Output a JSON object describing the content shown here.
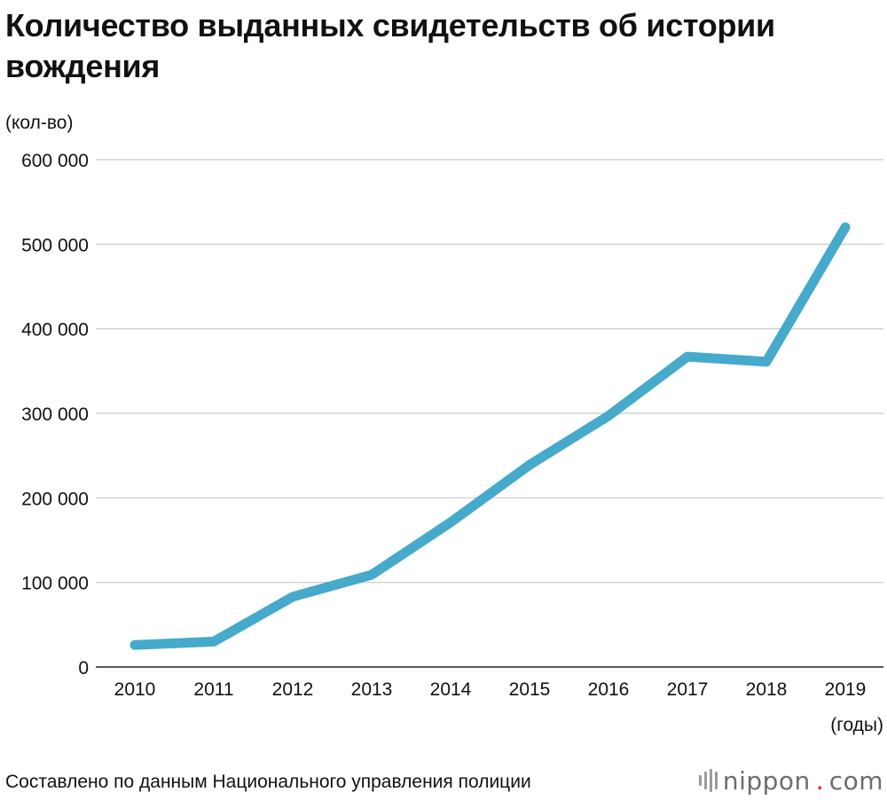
{
  "header": {
    "title": "Количество выданных свидетельств об истории вождения"
  },
  "chart_data": {
    "type": "line",
    "title": "Количество выданных свидетельств об истории вождения",
    "ylabel": "(кол-во)",
    "xlabel": "(годы)",
    "categories": [
      "2010",
      "2011",
      "2012",
      "2013",
      "2014",
      "2015",
      "2016",
      "2017",
      "2018",
      "2019"
    ],
    "series": [
      {
        "values": [
          26000,
          30000,
          83000,
          109000,
          171000,
          239000,
          297000,
          367000,
          361000,
          520000
        ]
      }
    ],
    "ylim": [
      0,
      600000
    ],
    "yticks": [
      0,
      100000,
      200000,
      300000,
      400000,
      500000,
      600000
    ],
    "ytick_labels": [
      "0",
      "100 000",
      "200 000",
      "300 000",
      "400 000",
      "500 000",
      "600 000"
    ],
    "grid": true,
    "line_color": "#45aacb"
  },
  "footer": {
    "source": "Составлено по данным Национального управления полиции",
    "brand_name": "nippon",
    "brand_dot": ".",
    "brand_tld": "com"
  }
}
